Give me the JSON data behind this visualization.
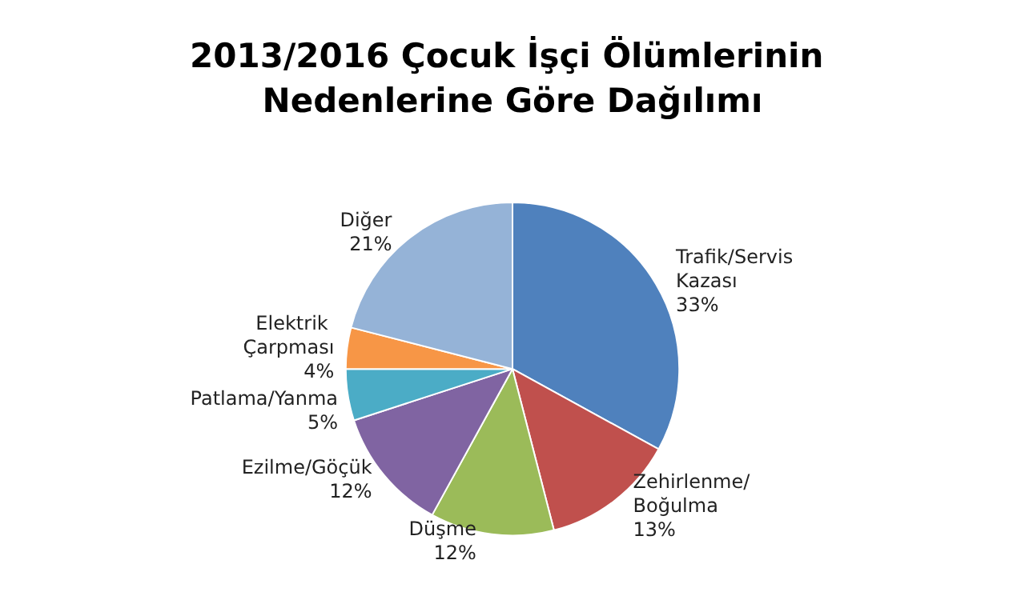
{
  "chart_data": {
    "type": "pie",
    "title": "2013/2016 Çocuk İşçi Ölümlerinin Nedenlerine Göre Dağılımı",
    "categories": [
      "Trafik/Servis Kazası",
      "Zehirlenme/Boğulma",
      "Düşme",
      "Ezilme/Göçük",
      "Patlama/Yanma",
      "Elektrik Çarpması",
      "Diğer"
    ],
    "values": [
      33,
      13,
      12,
      12,
      5,
      4,
      21
    ],
    "colors": [
      "#4f81bd",
      "#c0504d",
      "#9bbb59",
      "#8064a2",
      "#4bacc6",
      "#f79646",
      "#95b3d7"
    ],
    "value_labels": [
      "33%",
      "13%",
      "12%",
      "12%",
      "5%",
      "4%",
      "21%"
    ],
    "legend": false
  }
}
